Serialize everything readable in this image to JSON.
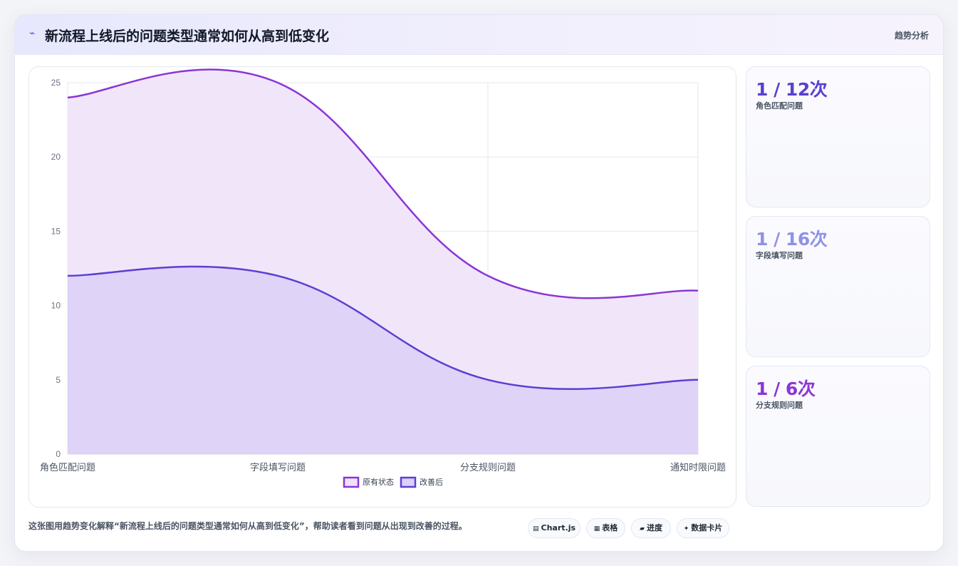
{
  "header": {
    "icon": "trend-line-icon",
    "title": "新流程上线后的问题类型通常如何从高到低变化",
    "link": "趋势分析"
  },
  "chart_data": {
    "type": "area",
    "categories": [
      "角色匹配问题",
      "字段填写问题",
      "分支规则问题",
      "通知时限问题"
    ],
    "series": [
      {
        "name": "原有状态",
        "values": [
          24,
          25,
          12,
          11
        ],
        "color": "#8b35d6",
        "fill": "#efe2f8"
      },
      {
        "name": "改善后",
        "values": [
          12,
          12,
          5,
          5
        ],
        "color": "#5b3fd1",
        "fill": "#dccff8"
      }
    ],
    "ylim": [
      0,
      25
    ],
    "yticks": [
      0,
      5,
      10,
      15,
      20,
      25
    ],
    "grid": true,
    "legend_position": "bottom"
  },
  "stats": [
    {
      "value": "1 / 12次",
      "label": "角色匹配问题",
      "color": "#5b3fd1"
    },
    {
      "value": "1 / 16次",
      "label": "字段填写问题",
      "color": "#8f92e3"
    },
    {
      "value": "1 / 6次",
      "label": "分支规则问题",
      "color": "#8b35d6"
    }
  ],
  "footer": {
    "description": "这张图用趋势变化解释“新流程上线后的问题类型通常如何从高到低变化”，帮助读者看到问题从出现到改善的过程。",
    "pills": [
      {
        "icon": "chart-icon",
        "glyph": "▤",
        "label": "Chart.js"
      },
      {
        "icon": "table-icon",
        "glyph": "▦",
        "label": "表格"
      },
      {
        "icon": "progress-icon",
        "glyph": "▰",
        "label": "进度"
      },
      {
        "icon": "sparkle-icon",
        "glyph": "✦",
        "label": "数据卡片"
      }
    ]
  }
}
